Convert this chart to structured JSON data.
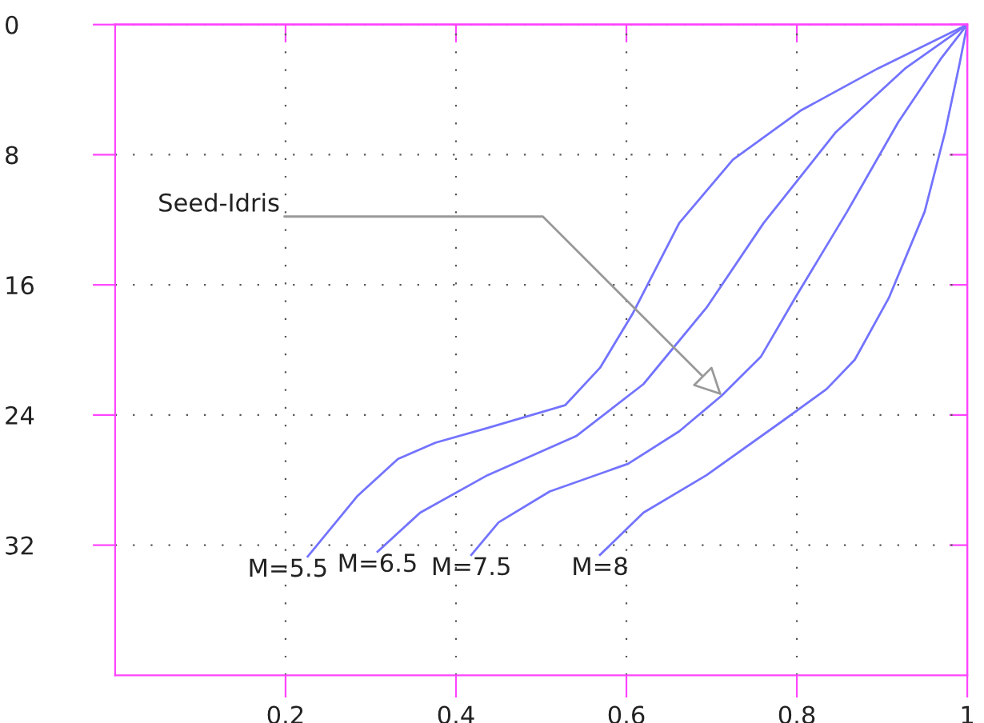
{
  "chart_data": {
    "type": "line",
    "xlim": [
      0,
      1
    ],
    "ylim": [
      40,
      0
    ],
    "xticks": [
      {
        "value": 0.2,
        "label": "0.2"
      },
      {
        "value": 0.4,
        "label": "0.4"
      },
      {
        "value": 0.6,
        "label": "0.6"
      },
      {
        "value": 0.8,
        "label": "0.8"
      },
      {
        "value": 1,
        "label": "1"
      }
    ],
    "yticks": [
      0,
      8,
      16,
      24,
      32
    ],
    "grid": true,
    "legend": false,
    "marker": "none",
    "line_style": "solid",
    "annotations": [
      {
        "text": "Seed-Idris",
        "x": 0.712,
        "y": 22.8
      }
    ],
    "series": [
      {
        "name": "M=5.5",
        "color": "#7373ff",
        "x": [
          0.226,
          0.284,
          0.332,
          0.376,
          0.437,
          0.528,
          0.569,
          0.607,
          0.662,
          0.725,
          0.804,
          0.895,
          1
        ],
        "values": [
          32.7,
          29.0,
          26.7,
          25.7,
          24.8,
          23.4,
          21.1,
          17.8,
          12.2,
          8.3,
          5.3,
          2.7,
          0
        ]
      },
      {
        "name": "M=6.5",
        "color": "#7373ff",
        "x": [
          0.308,
          0.358,
          0.437,
          0.541,
          0.62,
          0.694,
          0.761,
          0.846,
          0.927,
          1
        ],
        "values": [
          32.4,
          30.0,
          27.7,
          25.3,
          22.1,
          17.4,
          12.2,
          6.6,
          2.7,
          0
        ]
      },
      {
        "name": "M=7.5",
        "color": "#7373ff",
        "x": [
          0.418,
          0.45,
          0.51,
          0.602,
          0.662,
          0.712,
          0.758,
          0.798,
          0.859,
          0.919,
          0.969,
          1
        ],
        "values": [
          32.6,
          30.6,
          28.7,
          27.0,
          25.0,
          22.8,
          20.4,
          16.8,
          11.5,
          6.0,
          2.1,
          0
        ]
      },
      {
        "name": "M=8",
        "color": "#7373ff",
        "x": [
          0.569,
          0.62,
          0.694,
          0.785,
          0.835,
          0.868,
          0.908,
          0.95,
          0.974,
          0.991,
          1
        ],
        "values": [
          32.6,
          30.0,
          27.7,
          24.3,
          22.4,
          20.6,
          16.8,
          11.5,
          6.6,
          2.4,
          0
        ]
      }
    ]
  }
}
